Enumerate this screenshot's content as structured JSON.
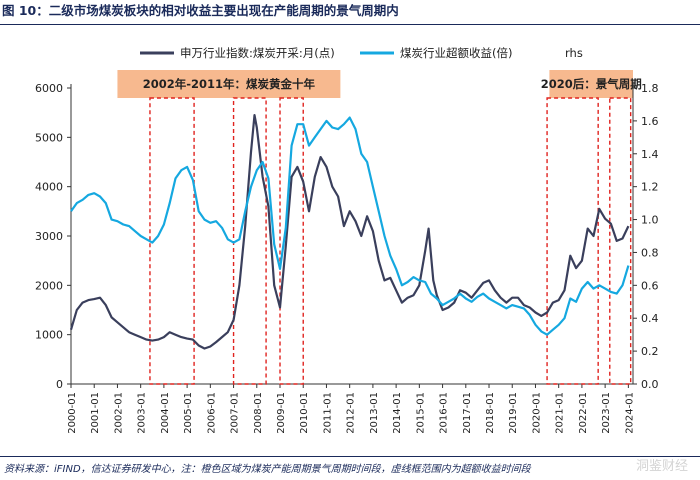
{
  "figure": {
    "title": "图 10：二级市场煤炭板块的相对收益主要出现在产能周期的景气周期内",
    "source_note": "资料来源：iFIND，信达证券研发中心，注：橙色区域为煤炭产能周期景气周期时间段，虚线框范围内为超额收益时间段",
    "watermark": "洞鉴财经"
  },
  "colors": {
    "series1": "#3a3f5c",
    "series2": "#15a8e0",
    "banner": "#f7b98f",
    "dashed_box": "#e0231f"
  },
  "chart_data": {
    "type": "line",
    "legend": {
      "position": "top",
      "items": [
        "申万行业指数:煤炭开采:月(点)",
        "煤炭行业超额收益(倍)"
      ],
      "rhs_note": "rhs"
    },
    "x_ticks": [
      "2000-01",
      "2001-01",
      "2002-01",
      "2003-01",
      "2004-01",
      "2005-01",
      "2006-01",
      "2007-01",
      "2008-01",
      "2009-01",
      "2010-01",
      "2011-01",
      "2012-01",
      "2013-01",
      "2014-01",
      "2015-01",
      "2016-01",
      "2017-01",
      "2018-01",
      "2019-01",
      "2020-01",
      "2021-01",
      "2022-01",
      "2023-01",
      "2024-01"
    ],
    "y_left": {
      "min": 0,
      "max": 6000,
      "ticks": [
        "0",
        "1000",
        "2000",
        "3000",
        "4000",
        "5000",
        "6000"
      ]
    },
    "y_right": {
      "min": 0,
      "max": 1.8,
      "ticks": [
        "0.0",
        "0.2",
        "0.4",
        "0.6",
        "0.8",
        "1.0",
        "1.2",
        "1.4",
        "1.6",
        "1.8"
      ]
    },
    "series": [
      {
        "name": "申万行业指数:煤炭开采:月(点)",
        "axis": "left",
        "points": [
          [
            2000.0,
            1100
          ],
          [
            2000.25,
            1500
          ],
          [
            2000.5,
            1650
          ],
          [
            2000.75,
            1700
          ],
          [
            2001.0,
            1720
          ],
          [
            2001.25,
            1750
          ],
          [
            2001.5,
            1600
          ],
          [
            2001.75,
            1350
          ],
          [
            2002.0,
            1250
          ],
          [
            2002.25,
            1150
          ],
          [
            2002.5,
            1050
          ],
          [
            2002.75,
            1000
          ],
          [
            2003.0,
            950
          ],
          [
            2003.25,
            900
          ],
          [
            2003.5,
            880
          ],
          [
            2003.75,
            900
          ],
          [
            2004.0,
            950
          ],
          [
            2004.25,
            1050
          ],
          [
            2004.5,
            1000
          ],
          [
            2004.75,
            950
          ],
          [
            2005.0,
            920
          ],
          [
            2005.25,
            900
          ],
          [
            2005.5,
            780
          ],
          [
            2005.75,
            720
          ],
          [
            2006.0,
            760
          ],
          [
            2006.25,
            850
          ],
          [
            2006.5,
            950
          ],
          [
            2006.75,
            1050
          ],
          [
            2007.0,
            1300
          ],
          [
            2007.25,
            2000
          ],
          [
            2007.5,
            3200
          ],
          [
            2007.75,
            4700
          ],
          [
            2007.9,
            5450
          ],
          [
            2008.0,
            5200
          ],
          [
            2008.25,
            4200
          ],
          [
            2008.5,
            3600
          ],
          [
            2008.75,
            2000
          ],
          [
            2009.0,
            1550
          ],
          [
            2009.25,
            2800
          ],
          [
            2009.5,
            4200
          ],
          [
            2009.75,
            4400
          ],
          [
            2010.0,
            4100
          ],
          [
            2010.25,
            3500
          ],
          [
            2010.5,
            4200
          ],
          [
            2010.75,
            4600
          ],
          [
            2011.0,
            4400
          ],
          [
            2011.25,
            4000
          ],
          [
            2011.5,
            3800
          ],
          [
            2011.75,
            3200
          ],
          [
            2012.0,
            3500
          ],
          [
            2012.25,
            3300
          ],
          [
            2012.5,
            3000
          ],
          [
            2012.75,
            3400
          ],
          [
            2013.0,
            3100
          ],
          [
            2013.25,
            2500
          ],
          [
            2013.5,
            2100
          ],
          [
            2013.75,
            2150
          ],
          [
            2014.0,
            1900
          ],
          [
            2014.25,
            1650
          ],
          [
            2014.5,
            1750
          ],
          [
            2014.75,
            1800
          ],
          [
            2015.0,
            2000
          ],
          [
            2015.25,
            2700
          ],
          [
            2015.4,
            3150
          ],
          [
            2015.6,
            2100
          ],
          [
            2015.75,
            1800
          ],
          [
            2016.0,
            1500
          ],
          [
            2016.25,
            1550
          ],
          [
            2016.5,
            1650
          ],
          [
            2016.75,
            1900
          ],
          [
            2017.0,
            1850
          ],
          [
            2017.25,
            1750
          ],
          [
            2017.5,
            1900
          ],
          [
            2017.75,
            2050
          ],
          [
            2018.0,
            2100
          ],
          [
            2018.25,
            1900
          ],
          [
            2018.5,
            1750
          ],
          [
            2018.75,
            1650
          ],
          [
            2019.0,
            1750
          ],
          [
            2019.25,
            1750
          ],
          [
            2019.5,
            1600
          ],
          [
            2019.75,
            1550
          ],
          [
            2020.0,
            1450
          ],
          [
            2020.25,
            1380
          ],
          [
            2020.5,
            1450
          ],
          [
            2020.75,
            1650
          ],
          [
            2021.0,
            1700
          ],
          [
            2021.25,
            1900
          ],
          [
            2021.5,
            2600
          ],
          [
            2021.75,
            2350
          ],
          [
            2022.0,
            2500
          ],
          [
            2022.25,
            3150
          ],
          [
            2022.5,
            3000
          ],
          [
            2022.75,
            3550
          ],
          [
            2023.0,
            3350
          ],
          [
            2023.25,
            3250
          ],
          [
            2023.5,
            2900
          ],
          [
            2023.75,
            2950
          ],
          [
            2024.0,
            3200
          ]
        ]
      },
      {
        "name": "煤炭行业超额收益(倍)",
        "axis": "right",
        "points": [
          [
            2000.0,
            1.05
          ],
          [
            2000.25,
            1.1
          ],
          [
            2000.5,
            1.12
          ],
          [
            2000.75,
            1.15
          ],
          [
            2001.0,
            1.16
          ],
          [
            2001.25,
            1.14
          ],
          [
            2001.5,
            1.1
          ],
          [
            2001.75,
            1.0
          ],
          [
            2002.0,
            0.99
          ],
          [
            2002.25,
            0.97
          ],
          [
            2002.5,
            0.96
          ],
          [
            2002.75,
            0.93
          ],
          [
            2003.0,
            0.9
          ],
          [
            2003.25,
            0.88
          ],
          [
            2003.5,
            0.86
          ],
          [
            2003.75,
            0.9
          ],
          [
            2004.0,
            0.97
          ],
          [
            2004.25,
            1.1
          ],
          [
            2004.5,
            1.25
          ],
          [
            2004.75,
            1.3
          ],
          [
            2005.0,
            1.32
          ],
          [
            2005.25,
            1.24
          ],
          [
            2005.5,
            1.05
          ],
          [
            2005.75,
            1.0
          ],
          [
            2006.0,
            0.98
          ],
          [
            2006.25,
            0.99
          ],
          [
            2006.5,
            0.95
          ],
          [
            2006.75,
            0.88
          ],
          [
            2007.0,
            0.86
          ],
          [
            2007.25,
            0.88
          ],
          [
            2007.5,
            1.05
          ],
          [
            2007.75,
            1.2
          ],
          [
            2008.0,
            1.3
          ],
          [
            2008.25,
            1.35
          ],
          [
            2008.5,
            1.25
          ],
          [
            2008.75,
            0.85
          ],
          [
            2009.0,
            0.7
          ],
          [
            2009.25,
            0.95
          ],
          [
            2009.5,
            1.45
          ],
          [
            2009.75,
            1.58
          ],
          [
            2010.0,
            1.58
          ],
          [
            2010.25,
            1.45
          ],
          [
            2010.5,
            1.5
          ],
          [
            2010.75,
            1.55
          ],
          [
            2011.0,
            1.6
          ],
          [
            2011.25,
            1.56
          ],
          [
            2011.5,
            1.55
          ],
          [
            2011.75,
            1.58
          ],
          [
            2012.0,
            1.62
          ],
          [
            2012.25,
            1.55
          ],
          [
            2012.5,
            1.4
          ],
          [
            2012.75,
            1.35
          ],
          [
            2013.0,
            1.2
          ],
          [
            2013.25,
            1.05
          ],
          [
            2013.5,
            0.9
          ],
          [
            2013.75,
            0.78
          ],
          [
            2014.0,
            0.7
          ],
          [
            2014.25,
            0.6
          ],
          [
            2014.5,
            0.62
          ],
          [
            2014.75,
            0.65
          ],
          [
            2015.0,
            0.63
          ],
          [
            2015.25,
            0.62
          ],
          [
            2015.5,
            0.55
          ],
          [
            2015.75,
            0.52
          ],
          [
            2016.0,
            0.48
          ],
          [
            2016.25,
            0.5
          ],
          [
            2016.5,
            0.52
          ],
          [
            2016.75,
            0.55
          ],
          [
            2017.0,
            0.52
          ],
          [
            2017.25,
            0.5
          ],
          [
            2017.5,
            0.53
          ],
          [
            2017.75,
            0.55
          ],
          [
            2018.0,
            0.52
          ],
          [
            2018.25,
            0.5
          ],
          [
            2018.5,
            0.48
          ],
          [
            2018.75,
            0.46
          ],
          [
            2019.0,
            0.48
          ],
          [
            2019.25,
            0.47
          ],
          [
            2019.5,
            0.46
          ],
          [
            2019.75,
            0.42
          ],
          [
            2020.0,
            0.36
          ],
          [
            2020.25,
            0.32
          ],
          [
            2020.5,
            0.3
          ],
          [
            2020.75,
            0.33
          ],
          [
            2021.0,
            0.36
          ],
          [
            2021.25,
            0.4
          ],
          [
            2021.5,
            0.52
          ],
          [
            2021.75,
            0.5
          ],
          [
            2022.0,
            0.58
          ],
          [
            2022.25,
            0.62
          ],
          [
            2022.5,
            0.58
          ],
          [
            2022.75,
            0.6
          ],
          [
            2023.0,
            0.58
          ],
          [
            2023.25,
            0.56
          ],
          [
            2023.5,
            0.55
          ],
          [
            2023.75,
            0.6
          ],
          [
            2024.0,
            0.72
          ]
        ]
      }
    ],
    "highlight_banners": [
      {
        "label": "2002年-2011年：煤炭黄金十年",
        "x_start": 2002.0,
        "x_end": 2011.6
      },
      {
        "label": "2020后：景气周期",
        "x_start": 2020.6,
        "x_end": 2024.2
      }
    ],
    "dashed_boxes": [
      {
        "x_start": 2003.4,
        "x_end": 2005.3
      },
      {
        "x_start": 2007.0,
        "x_end": 2008.4
      },
      {
        "x_start": 2009.0,
        "x_end": 2010.0
      },
      {
        "x_start": 2020.5,
        "x_end": 2022.7
      },
      {
        "x_start": 2023.2,
        "x_end": 2024.1
      }
    ],
    "grid": false
  }
}
